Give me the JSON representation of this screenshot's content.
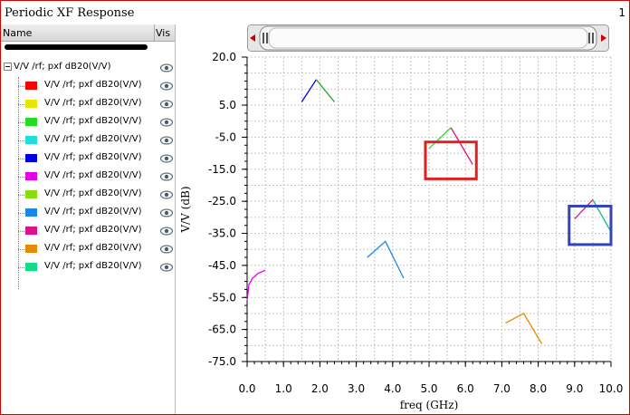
{
  "window": {
    "title": "Periodic XF Response",
    "page_number": "1"
  },
  "panel": {
    "col_name": "Name",
    "col_vis": "Vis",
    "root_label": "V/V /rf; pxf dB20(V/V)",
    "items": [
      {
        "label": "V/V /rf; pxf dB20(V/V)",
        "color": "#ff0000"
      },
      {
        "label": "V/V /rf; pxf dB20(V/V)",
        "color": "#e6e600"
      },
      {
        "label": "V/V /rf; pxf dB20(V/V)",
        "color": "#22dd22"
      },
      {
        "label": "V/V /rf; pxf dB20(V/V)",
        "color": "#22dddd"
      },
      {
        "label": "V/V /rf; pxf dB20(V/V)",
        "color": "#0000e6"
      },
      {
        "label": "V/V /rf; pxf dB20(V/V)",
        "color": "#e600e6"
      },
      {
        "label": "V/V /rf; pxf dB20(V/V)",
        "color": "#88dd11"
      },
      {
        "label": "V/V /rf; pxf dB20(V/V)",
        "color": "#1a88e6"
      },
      {
        "label": "V/V /rf; pxf dB20(V/V)",
        "color": "#dd1188"
      },
      {
        "label": "V/V /rf; pxf dB20(V/V)",
        "color": "#e68a00"
      },
      {
        "label": "V/V /rf; pxf dB20(V/V)",
        "color": "#11dd88"
      }
    ]
  },
  "chart_data": {
    "type": "line",
    "xlabel": "freq (GHz)",
    "ylabel": "V/V (dB)",
    "xlim": [
      0.0,
      10.0
    ],
    "ylim": [
      -75.0,
      20.0
    ],
    "xticks": [
      "0.0",
      "1.0",
      "2.0",
      "3.0",
      "4.0",
      "5.0",
      "6.0",
      "7.0",
      "8.0",
      "9.0",
      "10.0"
    ],
    "yticks": [
      "20.0",
      "5.0",
      "-5.0",
      "-15.0",
      "-25.0",
      "-35.0",
      "-45.0",
      "-55.0",
      "-65.0",
      "-75.0"
    ],
    "grid": true,
    "series": [
      {
        "color": "#e600e6",
        "points": [
          [
            0.0,
            -56.0
          ],
          [
            0.05,
            -51.0
          ],
          [
            0.15,
            -49.0
          ],
          [
            0.3,
            -47.5
          ],
          [
            0.5,
            -46.5
          ]
        ]
      },
      {
        "color": "#0000e6",
        "points": [
          [
            1.5,
            6.0
          ],
          [
            1.9,
            13.0
          ]
        ]
      },
      {
        "color": "#22aa22",
        "points": [
          [
            1.9,
            13.0
          ],
          [
            2.4,
            6.0
          ]
        ]
      },
      {
        "color": "#22dd22",
        "points": [
          [
            5.0,
            -8.5
          ],
          [
            5.6,
            -2.0
          ]
        ]
      },
      {
        "color": "#dd1188",
        "points": [
          [
            5.6,
            -2.0
          ],
          [
            6.2,
            -13.5
          ]
        ]
      },
      {
        "color": "#1a88e6",
        "points": [
          [
            3.3,
            -42.5
          ],
          [
            3.8,
            -37.5
          ],
          [
            4.3,
            -49.0
          ]
        ]
      },
      {
        "color": "#dd1188",
        "points": [
          [
            9.0,
            -30.5
          ],
          [
            9.5,
            -24.5
          ]
        ]
      },
      {
        "color": "#11bb88",
        "points": [
          [
            9.5,
            -24.5
          ],
          [
            10.0,
            -34.5
          ]
        ]
      },
      {
        "color": "#e68a00",
        "points": [
          [
            7.1,
            -63.0
          ],
          [
            7.6,
            -60.0
          ],
          [
            8.1,
            -69.5
          ]
        ]
      }
    ],
    "annotations": [
      {
        "shape": "rect",
        "color": "#dd2222",
        "x": [
          4.9,
          6.3
        ],
        "y": [
          -18.0,
          -6.5
        ]
      },
      {
        "shape": "rect",
        "color": "#3344bb",
        "x": [
          8.85,
          10.0
        ],
        "y": [
          -38.5,
          -26.5
        ]
      }
    ]
  }
}
